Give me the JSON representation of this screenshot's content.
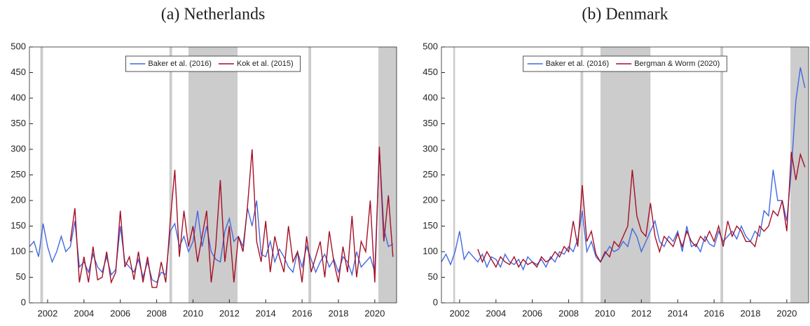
{
  "chart_data": [
    {
      "type": "line",
      "title": "(a) Netherlands",
      "legend": "upper center",
      "xlim": [
        2001,
        2021.2
      ],
      "xticks": [
        2002,
        2004,
        2006,
        2008,
        2010,
        2012,
        2014,
        2016,
        2018,
        2020
      ],
      "ylim": [
        0,
        500
      ],
      "yticks": [
        0,
        50,
        100,
        150,
        200,
        250,
        300,
        350,
        400,
        450,
        500
      ],
      "shaded": [
        [
          2001.6,
          2001.75
        ],
        [
          2008.7,
          2008.85
        ],
        [
          2009.75,
          2012.45
        ],
        [
          2016.35,
          2016.5
        ],
        [
          2020.2,
          2021.2
        ]
      ],
      "shade_color": "#cccccc",
      "x": [
        2001,
        2001.25,
        2001.5,
        2001.75,
        2002,
        2002.25,
        2002.5,
        2002.75,
        2003,
        2003.25,
        2003.5,
        2003.75,
        2004,
        2004.25,
        2004.5,
        2004.75,
        2005,
        2005.25,
        2005.5,
        2005.75,
        2006,
        2006.25,
        2006.5,
        2006.75,
        2007,
        2007.25,
        2007.5,
        2007.75,
        2008,
        2008.25,
        2008.5,
        2008.75,
        2009,
        2009.25,
        2009.5,
        2009.75,
        2010,
        2010.25,
        2010.5,
        2010.75,
        2011,
        2011.25,
        2011.5,
        2011.75,
        2012,
        2012.25,
        2012.5,
        2012.75,
        2013,
        2013.25,
        2013.5,
        2013.75,
        2014,
        2014.25,
        2014.5,
        2014.75,
        2015,
        2015.25,
        2015.5,
        2015.75,
        2016,
        2016.25,
        2016.5,
        2016.75,
        2017,
        2017.25,
        2017.5,
        2017.75,
        2018,
        2018.25,
        2018.5,
        2018.75,
        2019,
        2019.25,
        2019.5,
        2019.75,
        2020,
        2020.25,
        2020.5,
        2020.75,
        2021
      ],
      "series": [
        {
          "name": "Baker et al. (2016)",
          "color": "#4169e1",
          "values": [
            110,
            120,
            90,
            155,
            110,
            80,
            100,
            130,
            100,
            110,
            160,
            70,
            80,
            60,
            95,
            70,
            60,
            90,
            55,
            65,
            150,
            80,
            70,
            60,
            85,
            50,
            80,
            45,
            40,
            60,
            55,
            140,
            155,
            110,
            130,
            100,
            120,
            180,
            110,
            150,
            100,
            85,
            80,
            140,
            165,
            120,
            130,
            110,
            185,
            150,
            200,
            95,
            90,
            120,
            80,
            105,
            90,
            70,
            60,
            100,
            70,
            110,
            85,
            60,
            80,
            95,
            70,
            85,
            60,
            90,
            80,
            55,
            100,
            70,
            80,
            90,
            60,
            300,
            145,
            110,
            115
          ]
        },
        {
          "name": "Kok et al. (2015)",
          "color": "#a50f25",
          "values": [
            null,
            null,
            null,
            null,
            null,
            null,
            null,
            null,
            null,
            120,
            185,
            40,
            90,
            40,
            110,
            45,
            50,
            100,
            40,
            60,
            180,
            70,
            90,
            45,
            100,
            40,
            90,
            30,
            30,
            80,
            40,
            160,
            260,
            90,
            180,
            110,
            150,
            80,
            130,
            180,
            40,
            110,
            240,
            80,
            150,
            40,
            130,
            100,
            190,
            300,
            120,
            80,
            160,
            60,
            130,
            90,
            60,
            150,
            80,
            100,
            40,
            130,
            60,
            90,
            120,
            50,
            140,
            80,
            40,
            110,
            60,
            170,
            50,
            120,
            100,
            200,
            40,
            305,
            120,
            210,
            90
          ]
        }
      ]
    },
    {
      "type": "line",
      "title": "(b) Denmark",
      "legend": "upper center",
      "xlim": [
        2001,
        2021.2
      ],
      "xticks": [
        2002,
        2004,
        2006,
        2008,
        2010,
        2012,
        2014,
        2016,
        2018,
        2020
      ],
      "ylim": [
        0,
        500
      ],
      "yticks": [
        0,
        50,
        100,
        150,
        200,
        250,
        300,
        350,
        400,
        450,
        500
      ],
      "shaded": [
        [
          2001.65,
          2001.75
        ],
        [
          2008.65,
          2008.8
        ],
        [
          2009.75,
          2012.5
        ],
        [
          2016.35,
          2016.5
        ],
        [
          2020.2,
          2021.2
        ]
      ],
      "shade_color": "#cccccc",
      "x": [
        2001,
        2001.25,
        2001.5,
        2001.75,
        2002,
        2002.25,
        2002.5,
        2002.75,
        2003,
        2003.25,
        2003.5,
        2003.75,
        2004,
        2004.25,
        2004.5,
        2004.75,
        2005,
        2005.25,
        2005.5,
        2005.75,
        2006,
        2006.25,
        2006.5,
        2006.75,
        2007,
        2007.25,
        2007.5,
        2007.75,
        2008,
        2008.25,
        2008.5,
        2008.75,
        2009,
        2009.25,
        2009.5,
        2009.75,
        2010,
        2010.25,
        2010.5,
        2010.75,
        2011,
        2011.25,
        2011.5,
        2011.75,
        2012,
        2012.25,
        2012.5,
        2012.75,
        2013,
        2013.25,
        2013.5,
        2013.75,
        2014,
        2014.25,
        2014.5,
        2014.75,
        2015,
        2015.25,
        2015.5,
        2015.75,
        2016,
        2016.25,
        2016.5,
        2016.75,
        2017,
        2017.25,
        2017.5,
        2017.75,
        2018,
        2018.25,
        2018.5,
        2018.75,
        2019,
        2019.25,
        2019.5,
        2019.75,
        2020,
        2020.25,
        2020.5,
        2020.75,
        2021
      ],
      "series": [
        {
          "name": "Baker et al. (2016)",
          "color": "#4169e1",
          "values": [
            80,
            95,
            75,
            100,
            140,
            85,
            100,
            90,
            80,
            95,
            70,
            90,
            85,
            70,
            95,
            80,
            75,
            85,
            65,
            90,
            80,
            75,
            85,
            70,
            90,
            80,
            100,
            95,
            110,
            100,
            125,
            180,
            100,
            120,
            90,
            80,
            95,
            110,
            100,
            105,
            120,
            110,
            145,
            130,
            100,
            120,
            140,
            160,
            120,
            110,
            130,
            120,
            140,
            100,
            150,
            110,
            115,
            100,
            130,
            115,
            110,
            140,
            120,
            130,
            140,
            125,
            150,
            130,
            120,
            140,
            130,
            180,
            170,
            260,
            200,
            200,
            160,
            260,
            395,
            460,
            420
          ]
        },
        {
          "name": "Bergman & Worm (2020)",
          "color": "#a50f25",
          "values": [
            null,
            null,
            null,
            null,
            null,
            null,
            null,
            null,
            105,
            80,
            100,
            85,
            70,
            90,
            80,
            75,
            90,
            70,
            85,
            75,
            80,
            70,
            90,
            80,
            85,
            100,
            90,
            110,
            100,
            160,
            110,
            230,
            120,
            140,
            95,
            80,
            100,
            90,
            120,
            110,
            130,
            150,
            260,
            170,
            140,
            130,
            195,
            130,
            100,
            130,
            120,
            110,
            135,
            110,
            140,
            120,
            110,
            130,
            120,
            140,
            120,
            150,
            110,
            160,
            130,
            150,
            140,
            120,
            120,
            110,
            150,
            140,
            150,
            180,
            170,
            200,
            140,
            295,
            240,
            290,
            265
          ]
        }
      ]
    }
  ]
}
